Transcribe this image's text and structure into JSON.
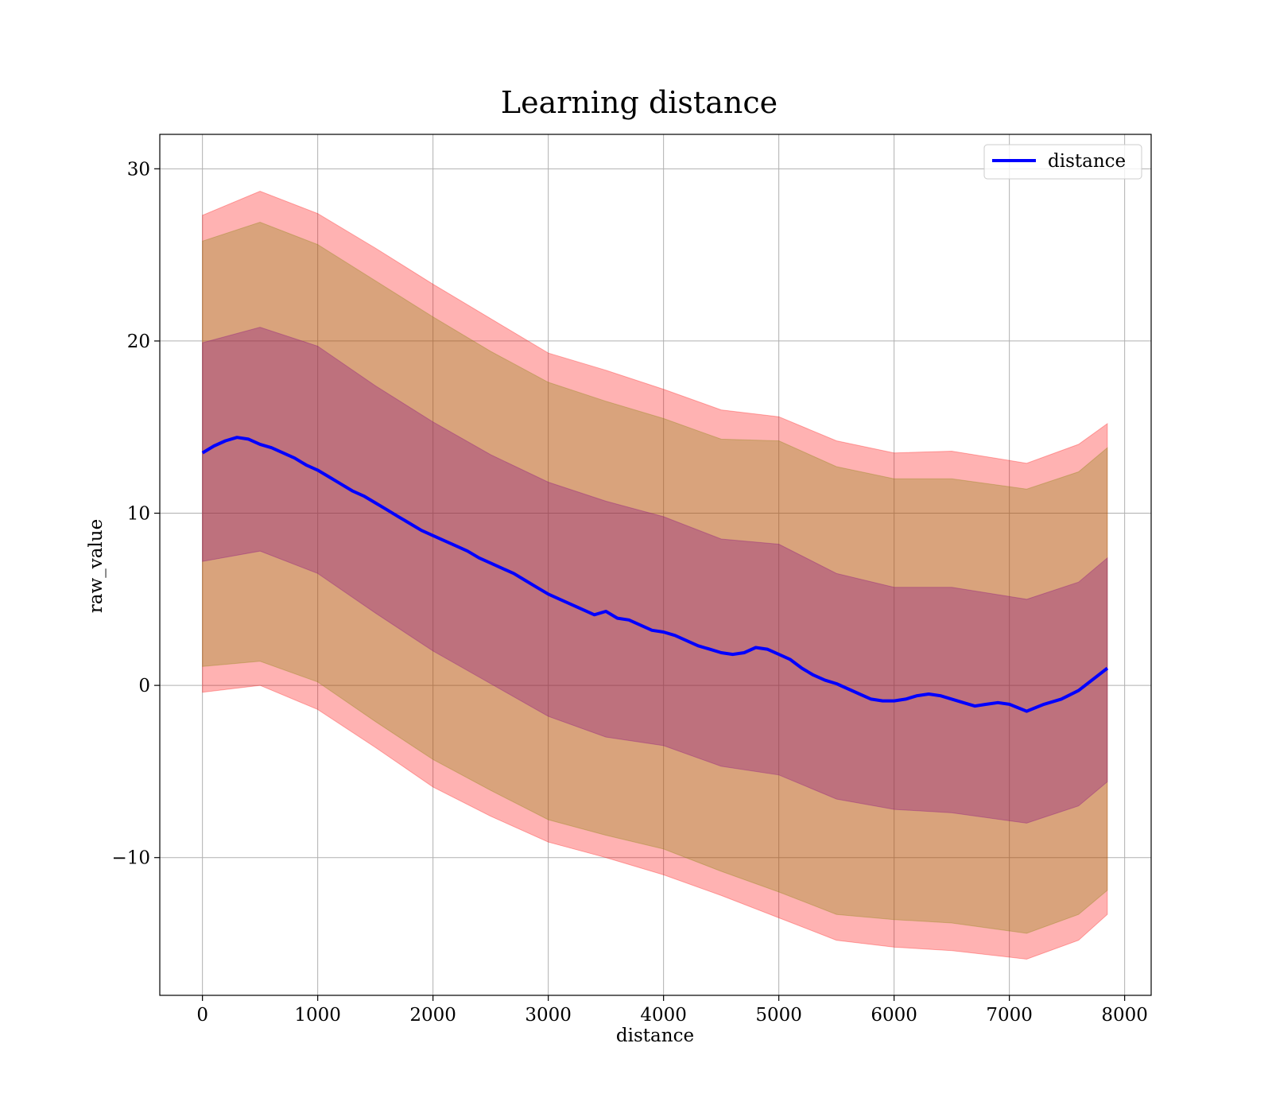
{
  "chart_data": {
    "type": "line",
    "title": "Learning distance",
    "xlabel": "distance",
    "ylabel": "raw_value",
    "xlim": [
      -370,
      8230
    ],
    "ylim": [
      -18,
      32
    ],
    "xticks": [
      0,
      1000,
      2000,
      3000,
      4000,
      5000,
      6000,
      7000,
      8000
    ],
    "xtick_labels": [
      "0",
      "1000",
      "2000",
      "3000",
      "4000",
      "5000",
      "6000",
      "7000",
      "8000"
    ],
    "yticks": [
      -10,
      0,
      10,
      20,
      30
    ],
    "ytick_labels": [
      "−10",
      "0",
      "10",
      "20",
      "30"
    ],
    "grid": true,
    "legend": {
      "position": "top-right",
      "entries": [
        "distance"
      ]
    },
    "series": [
      {
        "name": "distance",
        "color": "#0000ff",
        "x": [
          0,
          100,
          200,
          300,
          400,
          500,
          600,
          700,
          800,
          900,
          1000,
          1100,
          1200,
          1300,
          1400,
          1500,
          1600,
          1700,
          1800,
          1900,
          2000,
          2100,
          2200,
          2300,
          2400,
          2500,
          2600,
          2700,
          2800,
          2900,
          3000,
          3100,
          3200,
          3300,
          3400,
          3500,
          3600,
          3700,
          3800,
          3900,
          4000,
          4100,
          4200,
          4300,
          4400,
          4500,
          4600,
          4700,
          4800,
          4900,
          5000,
          5100,
          5200,
          5300,
          5400,
          5500,
          5600,
          5700,
          5800,
          5900,
          6000,
          6100,
          6200,
          6300,
          6400,
          6500,
          6600,
          6700,
          6800,
          6900,
          7000,
          7150,
          7300,
          7450,
          7600,
          7850
        ],
        "values": [
          13.5,
          13.9,
          14.2,
          14.4,
          14.3,
          14.0,
          13.8,
          13.5,
          13.2,
          12.8,
          12.5,
          12.1,
          11.7,
          11.3,
          11.0,
          10.6,
          10.2,
          9.8,
          9.4,
          9.0,
          8.7,
          8.4,
          8.1,
          7.8,
          7.4,
          7.1,
          6.8,
          6.5,
          6.1,
          5.7,
          5.3,
          5.0,
          4.7,
          4.4,
          4.1,
          4.3,
          3.9,
          3.8,
          3.5,
          3.2,
          3.1,
          2.9,
          2.6,
          2.3,
          2.1,
          1.9,
          1.8,
          1.9,
          2.2,
          2.1,
          1.8,
          1.5,
          1.0,
          0.6,
          0.3,
          0.1,
          -0.2,
          -0.5,
          -0.8,
          -0.9,
          -0.9,
          -0.8,
          -0.6,
          -0.5,
          -0.6,
          -0.8,
          -1.0,
          -1.2,
          -1.1,
          -1.0,
          -1.1,
          -1.5,
          -1.1,
          -0.8,
          -0.3,
          1.0
        ]
      }
    ],
    "bands": [
      {
        "color": "#ff0000",
        "opacity": 0.3,
        "x": [
          0,
          500,
          1000,
          1500,
          2000,
          2500,
          3000,
          3500,
          4000,
          4500,
          5000,
          5500,
          6000,
          6500,
          7150,
          7600,
          7850
        ],
        "upper": [
          27.3,
          28.7,
          27.4,
          25.4,
          23.3,
          21.3,
          19.3,
          18.3,
          17.2,
          16.0,
          15.6,
          14.2,
          13.5,
          13.6,
          12.9,
          14.0,
          15.2
        ],
        "lower": [
          -0.4,
          0.0,
          -1.4,
          -3.6,
          -5.9,
          -7.6,
          -9.1,
          -10.0,
          -11.0,
          -12.2,
          -13.5,
          -14.8,
          -15.2,
          -15.4,
          -15.9,
          -14.8,
          -13.3
        ]
      },
      {
        "color": "#808000",
        "opacity": 0.3,
        "x": [
          0,
          500,
          1000,
          1500,
          2000,
          2500,
          3000,
          3500,
          4000,
          4500,
          5000,
          5500,
          6000,
          6500,
          7150,
          7600,
          7850
        ],
        "upper": [
          25.8,
          26.9,
          25.6,
          23.5,
          21.4,
          19.4,
          17.6,
          16.5,
          15.5,
          14.3,
          14.2,
          12.7,
          12.0,
          12.0,
          11.4,
          12.4,
          13.8
        ],
        "lower": [
          1.1,
          1.4,
          0.2,
          -2.1,
          -4.3,
          -6.1,
          -7.8,
          -8.7,
          -9.5,
          -10.8,
          -12.0,
          -13.3,
          -13.6,
          -13.8,
          -14.4,
          -13.3,
          -11.9
        ]
      },
      {
        "color": "#800080",
        "opacity": 0.3,
        "x": [
          0,
          500,
          1000,
          1500,
          2000,
          2500,
          3000,
          3500,
          4000,
          4500,
          5000,
          5500,
          6000,
          6500,
          7150,
          7600,
          7850
        ],
        "upper": [
          19.9,
          20.8,
          19.7,
          17.4,
          15.3,
          13.4,
          11.8,
          10.7,
          9.8,
          8.5,
          8.2,
          6.5,
          5.7,
          5.7,
          5.0,
          6.0,
          7.4
        ],
        "lower": [
          7.2,
          7.8,
          6.5,
          4.2,
          2.0,
          0.1,
          -1.8,
          -3.0,
          -3.5,
          -4.7,
          -5.2,
          -6.6,
          -7.2,
          -7.4,
          -8.0,
          -7.0,
          -5.6
        ]
      }
    ]
  }
}
